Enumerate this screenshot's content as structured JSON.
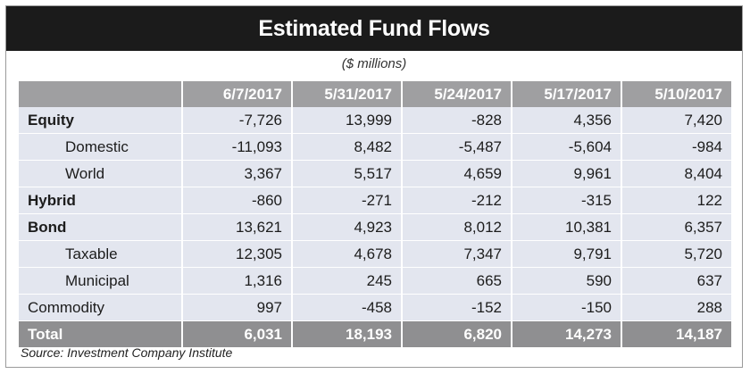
{
  "title": "Estimated Fund Flows",
  "subtitle": "($ millions)",
  "source": "Source: Investment Company Institute",
  "chart_data": {
    "type": "table",
    "title": "Estimated Fund Flows",
    "subtitle": "($ millions)",
    "columns": [
      "",
      "6/7/2017",
      "5/31/2017",
      "5/24/2017",
      "5/17/2017",
      "5/10/2017"
    ],
    "rows": [
      {
        "label": "Equity",
        "bold": true,
        "indent": false,
        "values": [
          "-7,726",
          "13,999",
          "-828",
          "4,356",
          "7,420"
        ]
      },
      {
        "label": "Domestic",
        "bold": false,
        "indent": true,
        "values": [
          "-11,093",
          "8,482",
          "-5,487",
          "-5,604",
          "-984"
        ]
      },
      {
        "label": "World",
        "bold": false,
        "indent": true,
        "values": [
          "3,367",
          "5,517",
          "4,659",
          "9,961",
          "8,404"
        ]
      },
      {
        "label": "Hybrid",
        "bold": true,
        "indent": false,
        "values": [
          "-860",
          "-271",
          "-212",
          "-315",
          "122"
        ]
      },
      {
        "label": "Bond",
        "bold": true,
        "indent": false,
        "values": [
          "13,621",
          "4,923",
          "8,012",
          "10,381",
          "6,357"
        ]
      },
      {
        "label": "Taxable",
        "bold": false,
        "indent": true,
        "values": [
          "12,305",
          "4,678",
          "7,347",
          "9,791",
          "5,720"
        ]
      },
      {
        "label": "Municipal",
        "bold": false,
        "indent": true,
        "values": [
          "1,316",
          "245",
          "665",
          "590",
          "637"
        ]
      },
      {
        "label": "Commodity",
        "bold": false,
        "indent": false,
        "values": [
          "997",
          "-458",
          "-152",
          "-150",
          "288"
        ]
      }
    ],
    "total": {
      "label": "Total",
      "values": [
        "6,031",
        "18,193",
        "6,820",
        "14,273",
        "14,187"
      ]
    },
    "source": "Source: Investment Company Institute"
  }
}
